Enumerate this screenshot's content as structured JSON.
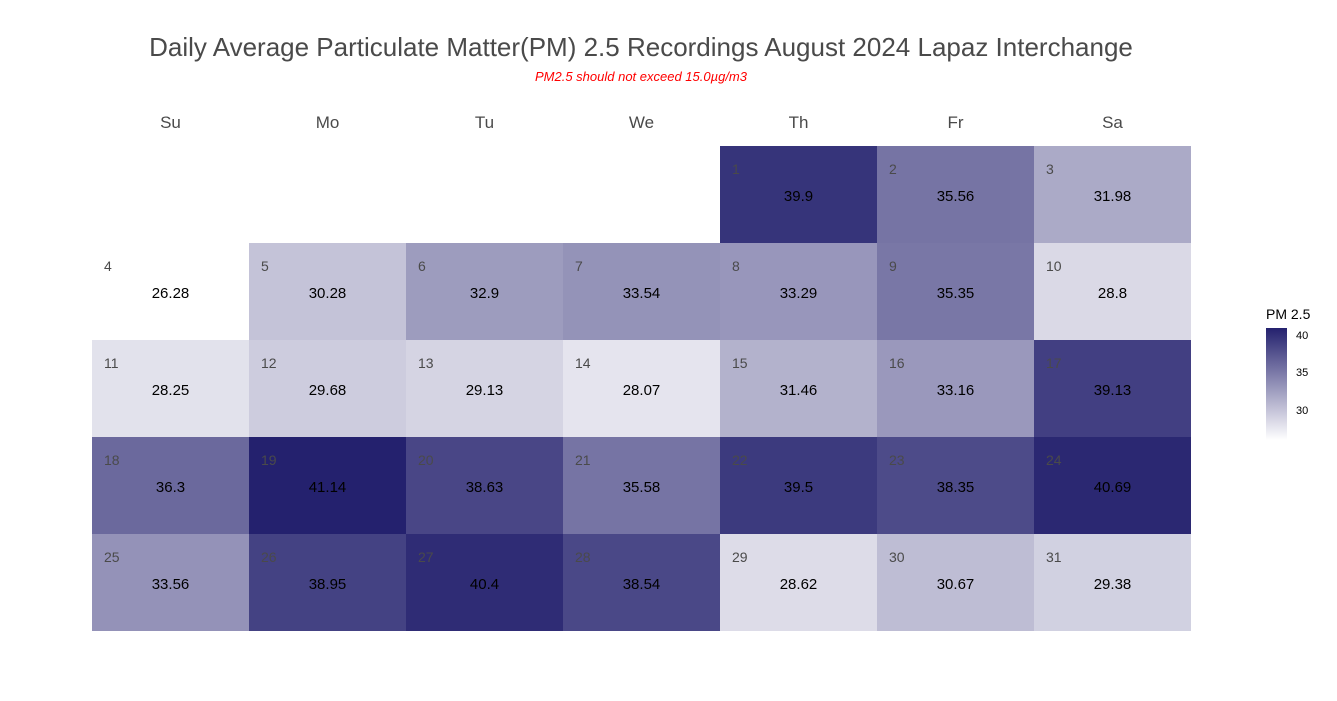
{
  "title": "Daily Average Particulate Matter(PM) 2.5 Recordings August 2024 Lapaz Interchange",
  "subtitle": "PM2.5 should not exceed 15.0µg/m3",
  "weekdays": [
    "Su",
    "Mo",
    "Tu",
    "We",
    "Th",
    "Fr",
    "Sa"
  ],
  "colors": {
    "low": "#ffffff",
    "high": "#24216e",
    "subtitle": "#ff0000",
    "text": "#4a4a4a"
  },
  "legend": {
    "title": "PM 2.5",
    "ticks": [
      {
        "label": "40",
        "value": 40
      },
      {
        "label": "35",
        "value": 35
      },
      {
        "label": "30",
        "value": 30
      }
    ]
  },
  "chart_data": {
    "type": "heatmap",
    "title": "Daily Average Particulate Matter(PM) 2.5 Recordings August 2024 Lapaz Interchange",
    "subtitle": "PM2.5 should not exceed 15.0µg/m3",
    "month": "August 2024",
    "first_weekday": "Th",
    "color_scale": {
      "min": 26.28,
      "max": 41.14,
      "low_color": "#ffffff",
      "high_color": "#24216e"
    },
    "days": [
      {
        "day": 1,
        "value": 39.9
      },
      {
        "day": 2,
        "value": 35.56
      },
      {
        "day": 3,
        "value": 31.98
      },
      {
        "day": 4,
        "value": 26.28
      },
      {
        "day": 5,
        "value": 30.28
      },
      {
        "day": 6,
        "value": 32.9
      },
      {
        "day": 7,
        "value": 33.54
      },
      {
        "day": 8,
        "value": 33.29
      },
      {
        "day": 9,
        "value": 35.35
      },
      {
        "day": 10,
        "value": 28.8
      },
      {
        "day": 11,
        "value": 28.25
      },
      {
        "day": 12,
        "value": 29.68
      },
      {
        "day": 13,
        "value": 29.13
      },
      {
        "day": 14,
        "value": 28.07
      },
      {
        "day": 15,
        "value": 31.46
      },
      {
        "day": 16,
        "value": 33.16
      },
      {
        "day": 17,
        "value": 39.13
      },
      {
        "day": 18,
        "value": 36.3
      },
      {
        "day": 19,
        "value": 41.14
      },
      {
        "day": 20,
        "value": 38.63
      },
      {
        "day": 21,
        "value": 35.58
      },
      {
        "day": 22,
        "value": 39.5
      },
      {
        "day": 23,
        "value": 38.35
      },
      {
        "day": 24,
        "value": 40.69
      },
      {
        "day": 25,
        "value": 33.56
      },
      {
        "day": 26,
        "value": 38.95
      },
      {
        "day": 27,
        "value": 40.4
      },
      {
        "day": 28,
        "value": 38.54
      },
      {
        "day": 29,
        "value": 28.62
      },
      {
        "day": 30,
        "value": 30.67
      },
      {
        "day": 31,
        "value": 29.38
      }
    ]
  }
}
